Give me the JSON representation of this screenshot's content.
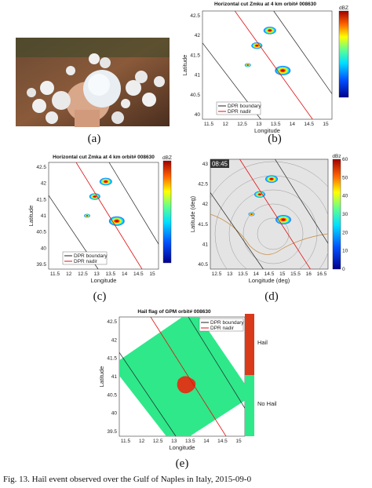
{
  "panels": [
    {
      "label": "(a)"
    },
    {
      "label": "(b)",
      "title": "Horizontal cut Zmku at 4 km orbit# 008630",
      "colorbar_title": "dBZ",
      "x_label": "Longitude",
      "y_label": "Latitude",
      "xticks": [
        "11.5",
        "12",
        "12.5",
        "13",
        "13.5",
        "14",
        "14.5",
        "15"
      ],
      "yticks": [
        "42.5",
        "42",
        "41.5",
        "41",
        "40.5",
        "40"
      ],
      "legend": [
        "DPR boundary",
        "DPR nadir"
      ]
    },
    {
      "label": "(c)",
      "title": "Horizontal cut Zmka at 4 km orbit# 008630",
      "colorbar_title": "dBZ",
      "x_label": "Longitude",
      "y_label": "Latitude",
      "xticks": [
        "11.5",
        "12",
        "12.5",
        "13",
        "13.5",
        "14",
        "14.5",
        "15"
      ],
      "yticks": [
        "42.5",
        "42",
        "41.5",
        "41",
        "40.5",
        "40",
        "39.5"
      ],
      "legend": [
        "DPR boundary",
        "DPR nadir"
      ]
    },
    {
      "label": "(d)",
      "time": "08:45",
      "colorbar_title": "dBz",
      "x_label": "Longitude (deg)",
      "y_label": "Latitude (deg)",
      "xticks": [
        "12.5",
        "13",
        "13.5",
        "14",
        "14.5",
        "15",
        "15.5",
        "16",
        "16.5"
      ],
      "yticks": [
        "43",
        "42.5",
        "42",
        "41.5",
        "41",
        "40.5"
      ],
      "colorbar_ticks": [
        "60",
        "50",
        "40",
        "30",
        "20",
        "10",
        "0"
      ]
    },
    {
      "label": "(e)",
      "title": "Hail flag of GPM orbit# 008630",
      "x_label": "Longitude",
      "y_label": "Latitude",
      "xticks": [
        "11.5",
        "12",
        "12.5",
        "13",
        "13.5",
        "14",
        "14.5",
        "15"
      ],
      "yticks": [
        "42.5",
        "42",
        "41.5",
        "41",
        "40.5",
        "40",
        "39.5"
      ],
      "legend": [
        "DPR boundary",
        "DPR nadir"
      ],
      "colorbar_labels": [
        "Hail",
        "No Hail"
      ]
    }
  ],
  "caption": "Fig. 13.   Hail event observed over the Gulf of Naples in Italy, 2015-09-0"
}
